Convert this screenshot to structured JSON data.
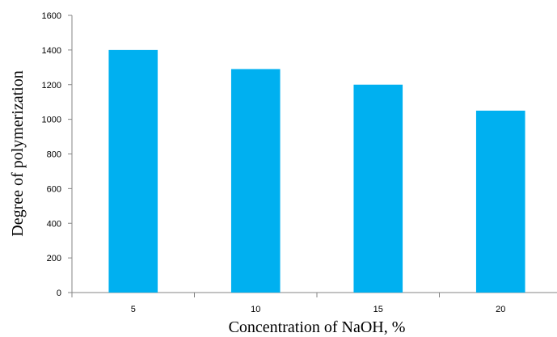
{
  "chart_data": {
    "type": "bar",
    "title": "",
    "xlabel": "Concentration of NaOH, %",
    "ylabel": "Degree of polymerization",
    "categories": [
      "5",
      "10",
      "15",
      "20"
    ],
    "values": [
      1400,
      1290,
      1200,
      1050
    ],
    "ylim": [
      0,
      1600
    ],
    "yticks": [
      "0",
      "200",
      "400",
      "600",
      "800",
      "1000",
      "1200",
      "1400",
      "1600"
    ],
    "bar_color": "#00B0F0",
    "grid": false,
    "legend": "none"
  }
}
